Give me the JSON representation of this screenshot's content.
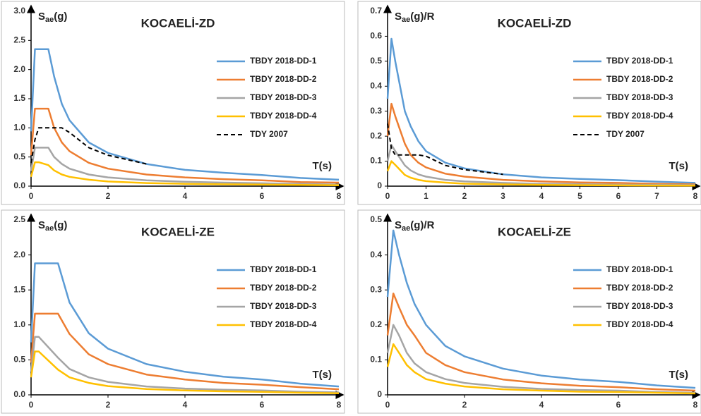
{
  "chart_data": [
    {
      "type": "line",
      "title": "KOCAELİ-ZD",
      "ylabel_parts": [
        "S",
        "ae",
        "(g)"
      ],
      "xlabel": "T(s)",
      "x": [
        0,
        0.1,
        0.2,
        0.45,
        0.6,
        0.8,
        1,
        1.5,
        2,
        3,
        4,
        5,
        6,
        7,
        8
      ],
      "xlim": [
        0,
        8
      ],
      "xticks": [
        0,
        2,
        4,
        6,
        8
      ],
      "ylim": [
        0,
        3
      ],
      "yticks": [
        {
          "value": 0,
          "label": "0.0"
        },
        0.5,
        {
          "value": 1,
          "label": "1.0"
        },
        1.5,
        {
          "value": 2,
          "label": "2.0"
        },
        2.5,
        {
          "value": 3,
          "label": "3.0"
        }
      ],
      "legend": "right",
      "series": [
        {
          "name": "TBDY 2018-DD-1",
          "color": "#5b9bd5",
          "values": [
            0.94,
            2.35,
            2.35,
            2.35,
            1.88,
            1.41,
            1.13,
            0.75,
            0.57,
            0.38,
            0.28,
            0.23,
            0.19,
            0.14,
            0.11
          ]
        },
        {
          "name": "TBDY 2018-DD-2",
          "color": "#ed7d31",
          "values": [
            0.53,
            1.33,
            1.33,
            1.33,
            1.0,
            0.75,
            0.6,
            0.4,
            0.3,
            0.2,
            0.15,
            0.12,
            0.1,
            0.07,
            0.06
          ]
        },
        {
          "name": "TBDY 2018-DD-3",
          "color": "#a5a5a5",
          "values": [
            0.26,
            0.66,
            0.66,
            0.66,
            0.5,
            0.38,
            0.3,
            0.2,
            0.15,
            0.1,
            0.075,
            0.06,
            0.05,
            0.037,
            0.028
          ]
        },
        {
          "name": "TBDY 2018-DD-4",
          "color": "#ffc000",
          "values": [
            0.16,
            0.41,
            0.41,
            0.36,
            0.27,
            0.2,
            0.16,
            0.11,
            0.08,
            0.053,
            0.04,
            0.032,
            0.027,
            0.02,
            0.015
          ]
        },
        {
          "name": "TDY 2007",
          "color": "#000000",
          "dashed": true,
          "values": [
            0.4,
            0.8,
            1.0,
            1.0,
            1.0,
            1.0,
            0.92,
            0.66,
            0.53,
            0.38,
            null,
            null,
            null,
            null,
            null
          ]
        }
      ]
    },
    {
      "type": "line",
      "title": "KOCAELİ-ZD",
      "ylabel_parts": [
        "S",
        "ae",
        "(g)/R"
      ],
      "xlabel": "T(s)",
      "x": [
        0,
        0.1,
        0.2,
        0.45,
        0.6,
        0.8,
        1,
        1.5,
        2,
        3,
        4,
        5,
        6,
        7,
        8
      ],
      "xlim": [
        0,
        8
      ],
      "xticks": [
        0,
        1,
        2,
        3,
        4,
        5,
        6,
        7,
        8
      ],
      "ylim": [
        0,
        0.7
      ],
      "yticks": [
        0,
        0.1,
        0.2,
        0.3,
        0.4,
        0.5,
        0.6,
        0.7
      ],
      "legend": "right",
      "series": [
        {
          "name": "TBDY 2018-DD-1",
          "color": "#5b9bd5",
          "values": [
            0.35,
            0.59,
            0.5,
            0.3,
            0.24,
            0.18,
            0.14,
            0.094,
            0.071,
            0.047,
            0.035,
            0.029,
            0.024,
            0.018,
            0.013
          ]
        },
        {
          "name": "TBDY 2018-DD-2",
          "color": "#ed7d31",
          "values": [
            0.2,
            0.33,
            0.28,
            0.17,
            0.125,
            0.094,
            0.075,
            0.05,
            0.038,
            0.025,
            0.019,
            0.015,
            0.013,
            0.009,
            0.007
          ]
        },
        {
          "name": "TBDY 2018-DD-3",
          "color": "#a5a5a5",
          "values": [
            0.1,
            0.165,
            0.14,
            0.083,
            0.063,
            0.047,
            0.038,
            0.025,
            0.019,
            0.013,
            0.009,
            0.008,
            0.006,
            0.005,
            0.004
          ]
        },
        {
          "name": "TBDY 2018-DD-4",
          "color": "#ffc000",
          "values": [
            0.06,
            0.1,
            0.085,
            0.045,
            0.034,
            0.025,
            0.02,
            0.014,
            0.01,
            0.007,
            0.005,
            0.004,
            0.003,
            0.0025,
            0.002
          ]
        },
        {
          "name": "TDY 2007",
          "color": "#000000",
          "dashed": true,
          "values": [
            0.25,
            0.15,
            0.125,
            0.125,
            0.125,
            0.125,
            0.12,
            0.083,
            0.066,
            0.047,
            null,
            null,
            null,
            null,
            null
          ]
        }
      ]
    },
    {
      "type": "line",
      "title": "KOCAELİ-ZE",
      "ylabel_parts": [
        "S",
        "ae",
        "(g)"
      ],
      "xlabel": "T(s)",
      "x": [
        0,
        0.1,
        0.2,
        0.7,
        1,
        1.5,
        2,
        3,
        4,
        5,
        6,
        7,
        8
      ],
      "xlim": [
        0,
        8
      ],
      "xticks": [
        0,
        2,
        4,
        6,
        8
      ],
      "ylim": [
        0,
        2.5
      ],
      "yticks": [
        {
          "value": 0,
          "label": "0.0"
        },
        0.5,
        {
          "value": 1,
          "label": "1.0"
        },
        1.5,
        {
          "value": 2,
          "label": "2.0"
        },
        2.5
      ],
      "legend": "right",
      "series": [
        {
          "name": "TBDY 2018-DD-1",
          "color": "#5b9bd5",
          "values": [
            0.75,
            1.88,
            1.88,
            1.88,
            1.32,
            0.88,
            0.66,
            0.44,
            0.33,
            0.26,
            0.22,
            0.16,
            0.12
          ]
        },
        {
          "name": "TBDY 2018-DD-2",
          "color": "#ed7d31",
          "values": [
            0.46,
            1.16,
            1.16,
            1.16,
            0.87,
            0.58,
            0.44,
            0.29,
            0.22,
            0.17,
            0.145,
            0.11,
            0.08
          ]
        },
        {
          "name": "TBDY 2018-DD-3",
          "color": "#a5a5a5",
          "values": [
            0.33,
            0.83,
            0.83,
            0.53,
            0.37,
            0.25,
            0.185,
            0.12,
            0.09,
            0.074,
            0.062,
            0.045,
            0.035
          ]
        },
        {
          "name": "TBDY 2018-DD-4",
          "color": "#ffc000",
          "values": [
            0.25,
            0.62,
            0.62,
            0.36,
            0.25,
            0.17,
            0.125,
            0.083,
            0.063,
            0.05,
            0.042,
            0.03,
            0.023
          ]
        }
      ]
    },
    {
      "type": "line",
      "title": "KOCAELİ-ZE",
      "ylabel_parts": [
        "S",
        "ae",
        "(g)/R"
      ],
      "xlabel": "T(s)",
      "x": [
        0,
        0.15,
        0.3,
        0.5,
        0.7,
        1,
        1.5,
        2,
        3,
        4,
        5,
        6,
        7,
        8
      ],
      "xlim": [
        0,
        8
      ],
      "xticks": [
        0,
        2,
        4,
        6,
        8
      ],
      "ylim": [
        0,
        0.5
      ],
      "yticks": [
        0,
        0.1,
        0.2,
        0.3,
        0.4,
        0.5
      ],
      "legend": "right",
      "series": [
        {
          "name": "TBDY 2018-DD-1",
          "color": "#5b9bd5",
          "values": [
            0.28,
            0.47,
            0.4,
            0.32,
            0.26,
            0.2,
            0.14,
            0.11,
            0.075,
            0.055,
            0.044,
            0.037,
            0.027,
            0.02
          ]
        },
        {
          "name": "TBDY 2018-DD-2",
          "color": "#ed7d31",
          "values": [
            0.17,
            0.29,
            0.25,
            0.2,
            0.17,
            0.12,
            0.085,
            0.065,
            0.044,
            0.033,
            0.026,
            0.022,
            0.016,
            0.012
          ]
        },
        {
          "name": "TBDY 2018-DD-3",
          "color": "#a5a5a5",
          "values": [
            0.12,
            0.2,
            0.17,
            0.12,
            0.09,
            0.065,
            0.045,
            0.034,
            0.023,
            0.017,
            0.014,
            0.012,
            0.008,
            0.006
          ]
        },
        {
          "name": "TBDY 2018-DD-4",
          "color": "#ffc000",
          "values": [
            0.08,
            0.145,
            0.12,
            0.085,
            0.065,
            0.045,
            0.032,
            0.024,
            0.016,
            0.012,
            0.009,
            0.008,
            0.006,
            0.004
          ]
        }
      ]
    }
  ]
}
